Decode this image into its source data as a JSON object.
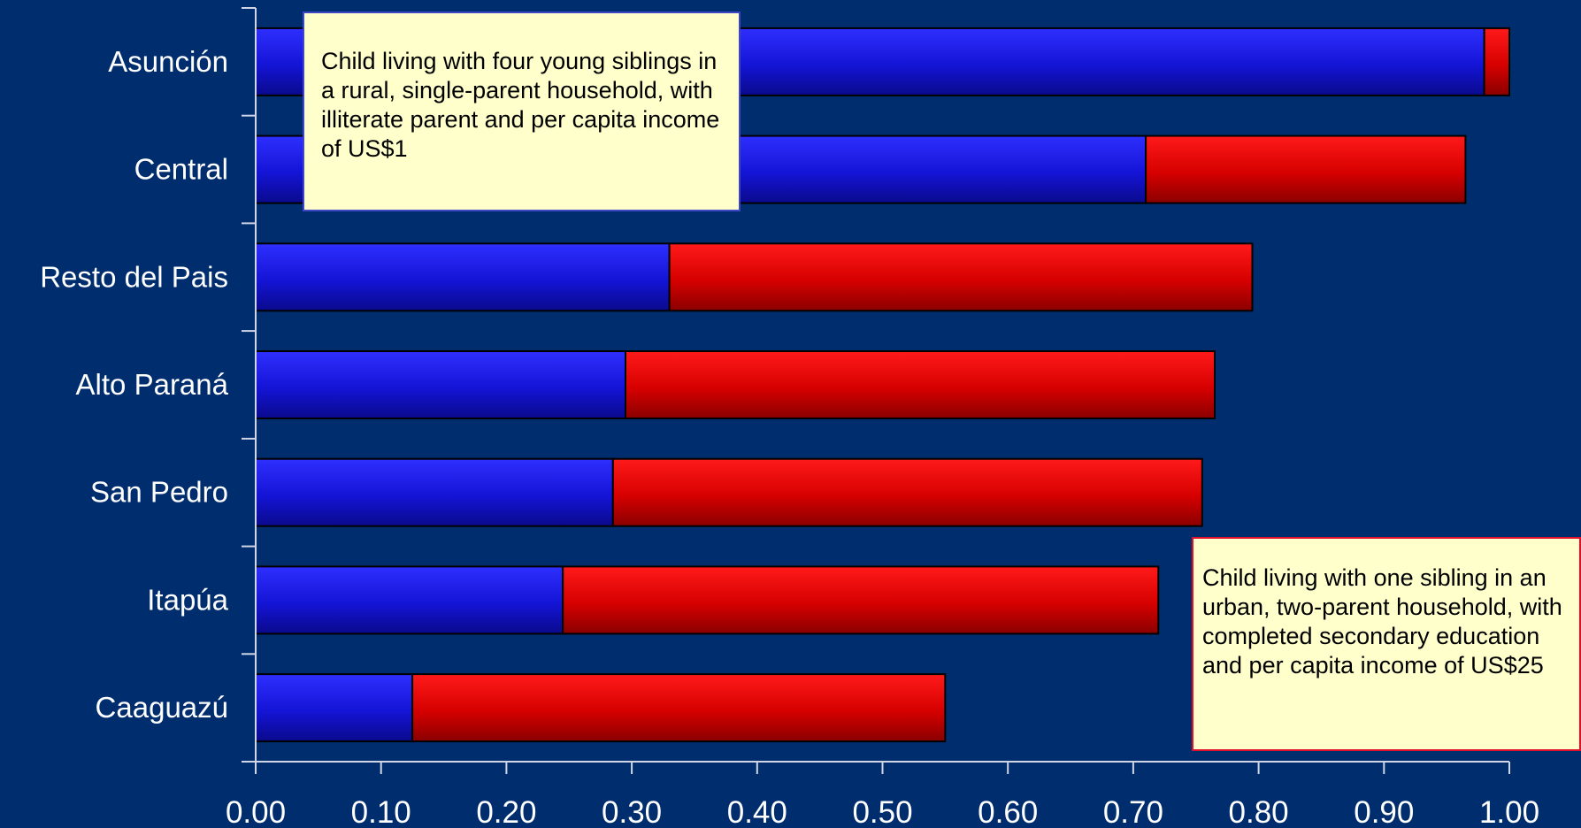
{
  "chart_data": {
    "type": "bar",
    "orientation": "horizontal",
    "stacked": true,
    "categories": [
      "Asunción",
      "Central",
      "Resto del Pais",
      "Alto Paraná",
      "San Pedro",
      "Itapúa",
      "Caaguazú"
    ],
    "series": [
      {
        "color": "#1515e6",
        "values": [
          0.98,
          0.71,
          0.33,
          0.295,
          0.285,
          0.245,
          0.125
        ]
      },
      {
        "color": "#e60000",
        "values": [
          0.02,
          0.255,
          0.465,
          0.47,
          0.47,
          0.475,
          0.425
        ]
      }
    ],
    "xlim": [
      0,
      1
    ],
    "x_ticks": [
      "0.00",
      "0.10",
      "0.20",
      "0.30",
      "0.40",
      "0.50",
      "0.60",
      "0.70",
      "0.80",
      "0.90",
      "1.00"
    ],
    "grid": false,
    "title": "",
    "xlabel": "",
    "ylabel": "",
    "annotations": [
      "Child living with four young siblings in a rural, single-parent household, with illiterate parent and per capita income of US$1",
      "Child living with one sibling in an urban, two-parent household, with completed secondary education and per capita income of US$25"
    ]
  },
  "colors": {
    "background": "#002d6e",
    "axis": "#d0d6e6",
    "bar_outline": "#000000"
  }
}
